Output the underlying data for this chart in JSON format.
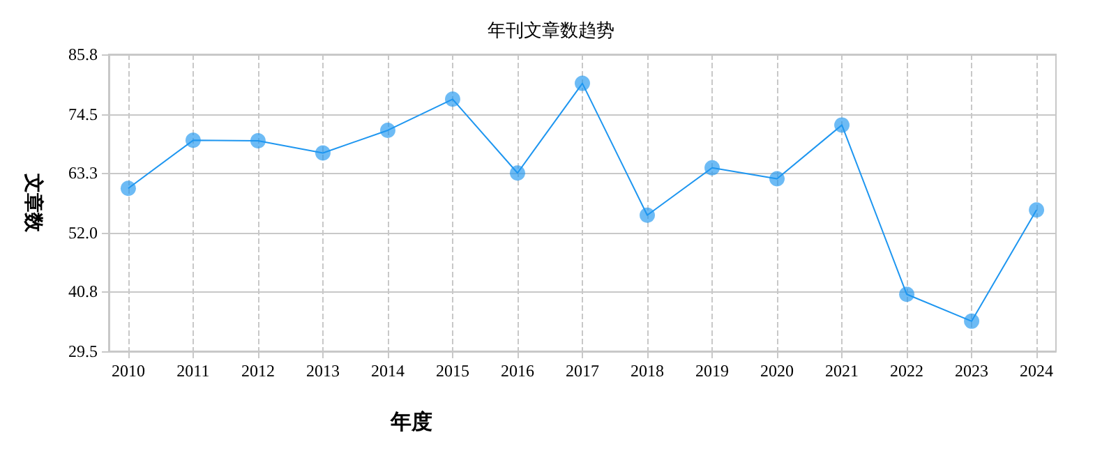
{
  "chart_data": {
    "type": "line",
    "title": "年刊文章数趋势",
    "xlabel": "年度",
    "ylabel": "文章数",
    "x": [
      2010,
      2011,
      2012,
      2013,
      2014,
      2015,
      2016,
      2017,
      2018,
      2019,
      2020,
      2021,
      2022,
      2023,
      2024
    ],
    "series": [
      {
        "color": "#1e96f0",
        "values": [
          60.4,
          69.5,
          69.4,
          67.1,
          71.4,
          77.3,
          63.3,
          80.3,
          55.3,
          64.3,
          62.2,
          72.4,
          40.3,
          35.2,
          56.3
        ]
      }
    ],
    "xlim": [
      2009.7,
      2024.3
    ],
    "xticks": [
      2010,
      2011,
      2012,
      2013,
      2014,
      2015,
      2016,
      2017,
      2018,
      2019,
      2020,
      2021,
      2022,
      2023,
      2024
    ],
    "ylim": [
      29.5,
      85.8
    ],
    "yticks": [
      {
        "value": 29.5,
        "label": "29.5"
      },
      {
        "value": 40.8,
        "label": "40.8"
      },
      {
        "value": 52,
        "label": "52.0"
      },
      {
        "value": 63.3,
        "label": "63.3"
      },
      {
        "value": 74.5,
        "label": "74.5"
      },
      {
        "value": 85.8,
        "label": "85.8"
      }
    ],
    "grid": true,
    "marker": "circle",
    "line_style": "solid"
  }
}
